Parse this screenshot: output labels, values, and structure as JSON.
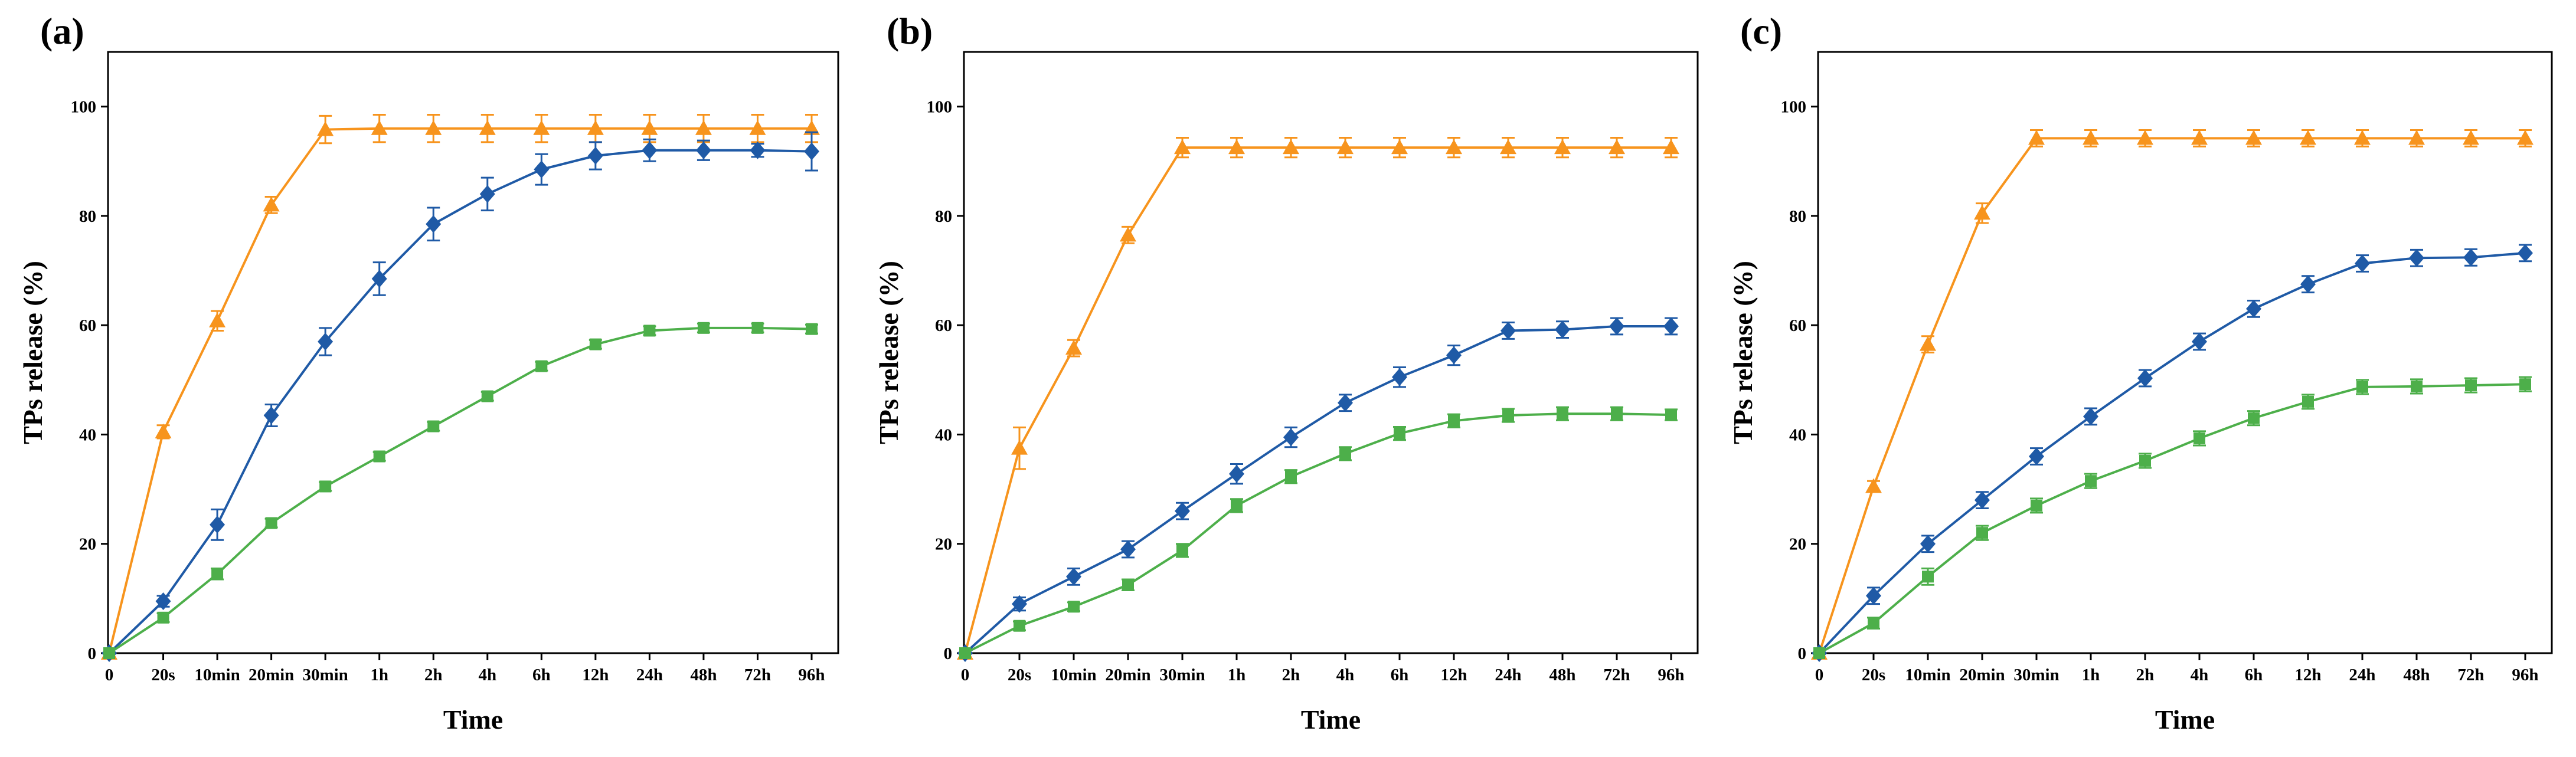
{
  "chart_data": [
    {
      "type": "line",
      "panel_label": "(a)",
      "xlabel": "Time",
      "ylabel": "TPs release (%)",
      "ylim": [
        0,
        110
      ],
      "yticks": [
        0,
        20,
        40,
        60,
        80,
        100
      ],
      "categories": [
        "0",
        "20s",
        "10min",
        "20min",
        "30min",
        "1h",
        "2h",
        "4h",
        "6h",
        "12h",
        "24h",
        "48h",
        "72h",
        "96h"
      ],
      "series": [
        {
          "name": "orange",
          "color": "#F7941D",
          "marker": "triangle",
          "values": [
            0,
            40.5,
            60.8,
            82.0,
            95.8,
            96.0,
            96.0,
            96.0,
            96.0,
            96.0,
            96.0,
            96.0,
            96.0,
            96.0
          ],
          "errors": [
            0,
            1.2,
            1.8,
            1.5,
            2.5,
            2.5,
            2.5,
            2.5,
            2.5,
            2.5,
            2.5,
            2.5,
            2.5,
            2.5
          ]
        },
        {
          "name": "blue",
          "color": "#1F5AA6",
          "marker": "diamond",
          "values": [
            0,
            9.5,
            23.5,
            43.5,
            57.0,
            68.5,
            78.5,
            84.0,
            88.5,
            91.0,
            92.0,
            92.0,
            92.0,
            91.8
          ],
          "errors": [
            0,
            1.0,
            2.8,
            2.0,
            2.5,
            3.0,
            3.0,
            3.0,
            2.8,
            2.5,
            2.0,
            1.8,
            1.2,
            3.5
          ]
        },
        {
          "name": "green",
          "color": "#4DAF4A",
          "marker": "square",
          "values": [
            0,
            6.5,
            14.5,
            23.8,
            30.5,
            36.0,
            41.5,
            47.0,
            52.5,
            56.5,
            59.0,
            59.5,
            59.5,
            59.3
          ],
          "errors": [
            0,
            0.8,
            1.0,
            0.8,
            0.8,
            0.8,
            0.8,
            0.8,
            0.8,
            0.8,
            0.8,
            0.8,
            0.8,
            0.8
          ]
        }
      ]
    },
    {
      "type": "line",
      "panel_label": "(b)",
      "xlabel": "Time",
      "ylabel": "TPs release (%)",
      "ylim": [
        0,
        110
      ],
      "yticks": [
        0,
        20,
        40,
        60,
        80,
        100
      ],
      "categories": [
        "0",
        "20s",
        "10min",
        "20min",
        "30min",
        "1h",
        "2h",
        "4h",
        "6h",
        "12h",
        "24h",
        "48h",
        "72h",
        "96h"
      ],
      "series": [
        {
          "name": "orange",
          "color": "#F7941D",
          "marker": "triangle",
          "values": [
            0,
            37.5,
            55.8,
            76.5,
            92.5,
            92.5,
            92.5,
            92.5,
            92.5,
            92.5,
            92.5,
            92.5,
            92.5,
            92.5
          ],
          "errors": [
            0,
            3.8,
            1.5,
            1.5,
            1.8,
            1.8,
            1.8,
            1.8,
            1.8,
            1.8,
            1.8,
            1.8,
            1.8,
            1.8
          ]
        },
        {
          "name": "blue",
          "color": "#1F5AA6",
          "marker": "diamond",
          "values": [
            0,
            9.0,
            14.0,
            19.0,
            26.0,
            32.8,
            39.5,
            45.8,
            50.5,
            54.5,
            59.0,
            59.2,
            59.8,
            59.8
          ],
          "errors": [
            0,
            1.2,
            1.5,
            1.5,
            1.5,
            1.8,
            1.8,
            1.5,
            1.8,
            1.8,
            1.5,
            1.5,
            1.5,
            1.5
          ]
        },
        {
          "name": "green",
          "color": "#4DAF4A",
          "marker": "square",
          "values": [
            0,
            5.0,
            8.5,
            12.5,
            18.8,
            27.0,
            32.3,
            36.5,
            40.2,
            42.5,
            43.5,
            43.8,
            43.8,
            43.6
          ],
          "errors": [
            0,
            0.8,
            0.8,
            1.0,
            1.2,
            1.2,
            1.2,
            1.2,
            1.2,
            1.2,
            1.2,
            1.2,
            1.2,
            1.0
          ]
        }
      ]
    },
    {
      "type": "line",
      "panel_label": "(c)",
      "xlabel": "Time",
      "ylabel": "TPs release (%)",
      "ylim": [
        0,
        110
      ],
      "yticks": [
        0,
        20,
        40,
        60,
        80,
        100
      ],
      "categories": [
        "0",
        "20s",
        "10min",
        "20min",
        "30min",
        "1h",
        "2h",
        "4h",
        "6h",
        "12h",
        "24h",
        "48h",
        "72h",
        "96h"
      ],
      "series": [
        {
          "name": "orange",
          "color": "#F7941D",
          "marker": "triangle",
          "values": [
            0,
            30.5,
            56.5,
            80.5,
            94.2,
            94.2,
            94.2,
            94.2,
            94.2,
            94.2,
            94.2,
            94.2,
            94.2,
            94.2
          ],
          "errors": [
            0,
            1.0,
            1.5,
            1.8,
            1.5,
            1.5,
            1.5,
            1.5,
            1.5,
            1.5,
            1.5,
            1.5,
            1.5,
            1.5
          ]
        },
        {
          "name": "blue",
          "color": "#1F5AA6",
          "marker": "diamond",
          "values": [
            0,
            10.5,
            20.0,
            28.0,
            36.0,
            43.3,
            50.3,
            57.0,
            63.0,
            67.5,
            71.3,
            72.3,
            72.4,
            73.2
          ],
          "errors": [
            0,
            1.5,
            1.5,
            1.5,
            1.5,
            1.5,
            1.5,
            1.5,
            1.5,
            1.5,
            1.5,
            1.5,
            1.5,
            1.5
          ]
        },
        {
          "name": "green",
          "color": "#4DAF4A",
          "marker": "square",
          "values": [
            0,
            5.5,
            14.0,
            22.0,
            27.0,
            31.5,
            35.2,
            39.3,
            43.0,
            46.0,
            48.7,
            48.8,
            49.0,
            49.2
          ],
          "errors": [
            0,
            1.0,
            1.5,
            1.3,
            1.3,
            1.3,
            1.3,
            1.3,
            1.3,
            1.3,
            1.3,
            1.3,
            1.3,
            1.3
          ]
        }
      ]
    }
  ]
}
